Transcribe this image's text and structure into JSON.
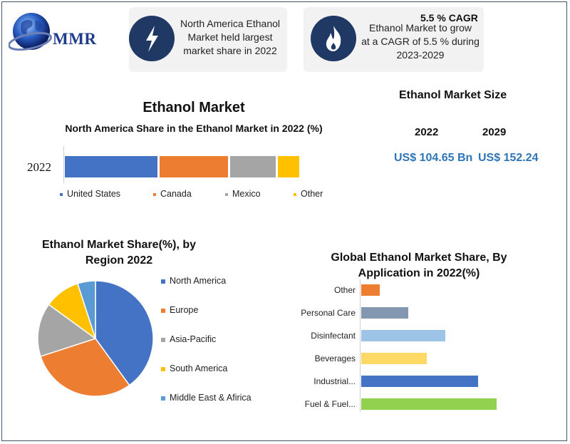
{
  "brand": {
    "logo_text": "MMR"
  },
  "cards": {
    "left": {
      "text_lines": [
        "North America Ethanol",
        "Market held largest",
        "market share in 2022"
      ]
    },
    "right": {
      "title": "5.5 % CAGR",
      "text_lines": [
        "Ethanol Market to grow",
        "at a CAGR of 5.5 % during",
        "2023-2029"
      ]
    }
  },
  "market_size": {
    "title": "Ethanol Market Size",
    "year_a": "2022",
    "year_b": "2029",
    "value_a": "US$ 104.65 Bn",
    "value_b": "US$ 152.24"
  },
  "chart_data": [
    {
      "type": "bar",
      "orientation": "horizontal-stacked",
      "title": "Ethanol  Market",
      "subtitle": "North America Share in the Ethanol Market in 2022 (%)",
      "categories": [
        "2022"
      ],
      "series": [
        {
          "name": "United States",
          "values": [
            40
          ],
          "color": "#4472c4"
        },
        {
          "name": "Canada",
          "values": [
            30
          ],
          "color": "#ed7d31"
        },
        {
          "name": "Mexico",
          "values": [
            20
          ],
          "color": "#a5a5a5"
        },
        {
          "name": "Other",
          "values": [
            10
          ],
          "color": "#ffc000"
        }
      ],
      "legend": "bottom"
    },
    {
      "type": "pie",
      "title": "Ethanol Market Share(%), by Region 2022",
      "labels": [
        "North America",
        "Europe",
        "Asia-Pacific",
        "South America",
        "Middle East & Afirica"
      ],
      "values": [
        40,
        30,
        15,
        10,
        5
      ],
      "colors": [
        "#4472c4",
        "#ed7d31",
        "#a5a5a5",
        "#ffc000",
        "#5b9bd5"
      ],
      "legend": "right"
    },
    {
      "type": "bar",
      "orientation": "horizontal",
      "title": "Global Ethanol Market Share, By Application in 2022(%)",
      "categories": [
        "Other",
        "Personal Care",
        "Disinfectant",
        "Beverages",
        "Industrial...",
        "Fuel & Fuel..."
      ],
      "values": [
        4,
        10,
        18,
        14,
        25,
        29
      ],
      "colors": [
        "#ed7d31",
        "#8497b0",
        "#9dc3e6",
        "#ffd966",
        "#4472c4",
        "#92d050"
      ]
    }
  ]
}
